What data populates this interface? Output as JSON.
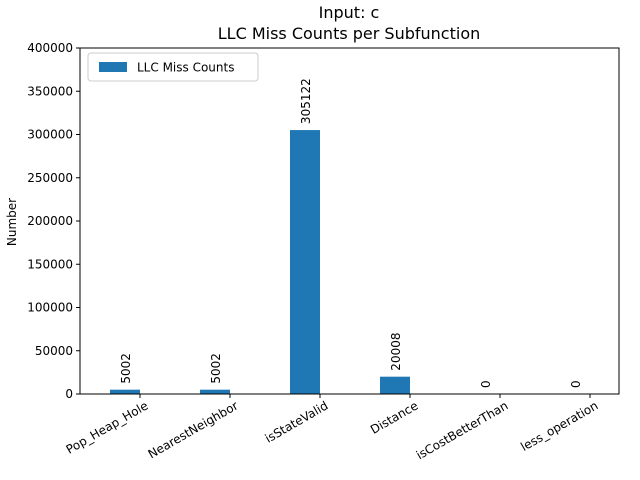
{
  "chart_data": {
    "type": "bar",
    "title": "Input: c",
    "subtitle": "LLC Miss Counts per Subfunction",
    "xlabel": "",
    "ylabel": "Number",
    "categories": [
      "Pop_Heap_Hole",
      "NearestNeighbor",
      "isStateValid",
      "Distance",
      "isCostBetterThan",
      "less_operation"
    ],
    "series": [
      {
        "name": "LLC Miss Counts",
        "values": [
          5002,
          5002,
          305122,
          20008,
          0,
          0
        ],
        "color": "#1f77b4"
      }
    ],
    "data_labels": [
      "5002",
      "5002",
      "305122",
      "20008",
      "0",
      "0"
    ],
    "ylim": [
      0,
      400000
    ],
    "yticks": [
      0,
      50000,
      100000,
      150000,
      200000,
      250000,
      300000,
      350000,
      400000
    ],
    "ytick_labels": [
      "0",
      "50000",
      "100000",
      "150000",
      "200000",
      "250000",
      "300000",
      "350000",
      "400000"
    ],
    "grid": false,
    "legend_position": "top-left"
  }
}
